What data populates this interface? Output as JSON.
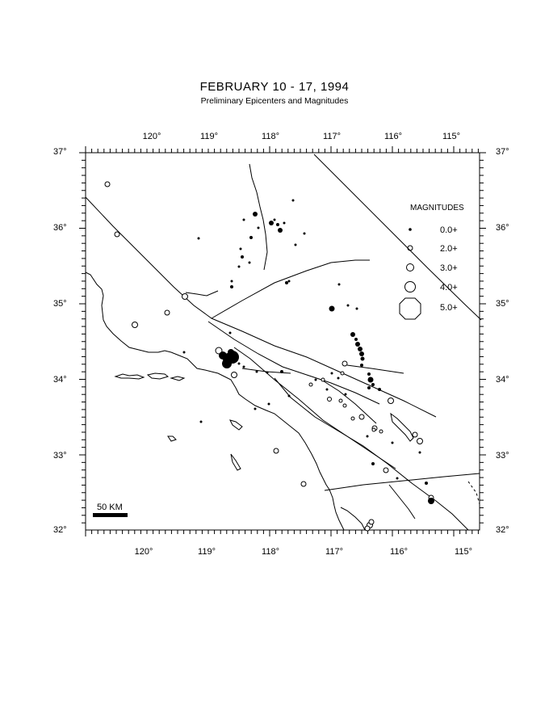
{
  "title": "FEBRUARY 10 - 17, 1994",
  "subtitle": "Preliminary Epicenters and Magnitudes",
  "lon_labels": [
    "120°",
    "119°",
    "118°",
    "117°",
    "116°",
    "115°"
  ],
  "lat_labels": [
    "37°",
    "36°",
    "35°",
    "34°",
    "33°",
    "32°"
  ],
  "legend": {
    "title": "MAGNITUDES",
    "items": [
      {
        "label": "0.0+"
      },
      {
        "label": "2.0+"
      },
      {
        "label": "3.0+"
      },
      {
        "label": "4.0+"
      },
      {
        "label": "5.0+"
      }
    ]
  },
  "scale_bar_label": "50 KM",
  "colors": {
    "ink": "#000000",
    "background": "#ffffff"
  }
}
